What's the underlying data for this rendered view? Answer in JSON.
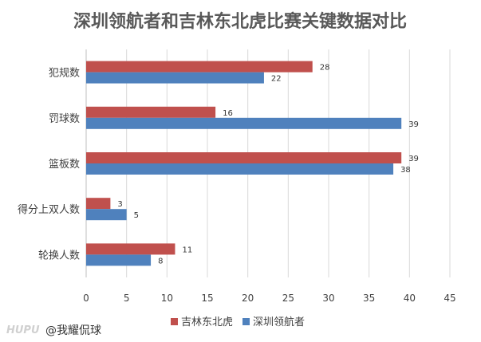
{
  "chart_data": {
    "type": "bar",
    "orientation": "horizontal",
    "title": "深圳领航者和吉林东北虎比赛关键数据对比",
    "categories": [
      "犯规数",
      "罚球数",
      "篮板数",
      "得分上双人数",
      "轮换人数"
    ],
    "series": [
      {
        "name": "吉林东北虎",
        "color": "#c0504d",
        "values": [
          28,
          16,
          39,
          3,
          11
        ]
      },
      {
        "name": "深圳领航者",
        "color": "#4f81bd",
        "values": [
          22,
          39,
          38,
          5,
          8
        ]
      }
    ],
    "xlim": [
      0,
      45
    ],
    "xticks": [
      "0",
      "5",
      "10",
      "15",
      "20",
      "25",
      "30",
      "35",
      "40",
      "45"
    ],
    "grid": true,
    "legend": "bottom"
  },
  "watermark": {
    "logo": "HUPU",
    "text": "@我耀侃球"
  }
}
